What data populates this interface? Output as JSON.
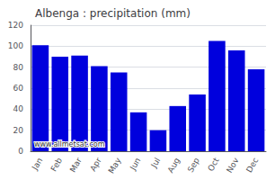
{
  "chart_data": {
    "type": "bar",
    "title": "Albenga : precipitation (mm)",
    "categories": [
      "Jan",
      "Feb",
      "Mar",
      "Apr",
      "May",
      "Jun",
      "Jul",
      "Aug",
      "Sep",
      "Oct",
      "Nov",
      "Dec"
    ],
    "values": [
      101,
      90,
      91,
      81,
      75,
      37,
      20,
      43,
      54,
      105,
      96,
      78
    ],
    "color": "#0000dd",
    "ylim": [
      0,
      120
    ],
    "yticks": [
      0,
      20,
      40,
      60,
      80,
      100,
      120
    ],
    "grid": true,
    "annotations": [
      "www.allmetsat.com"
    ]
  }
}
